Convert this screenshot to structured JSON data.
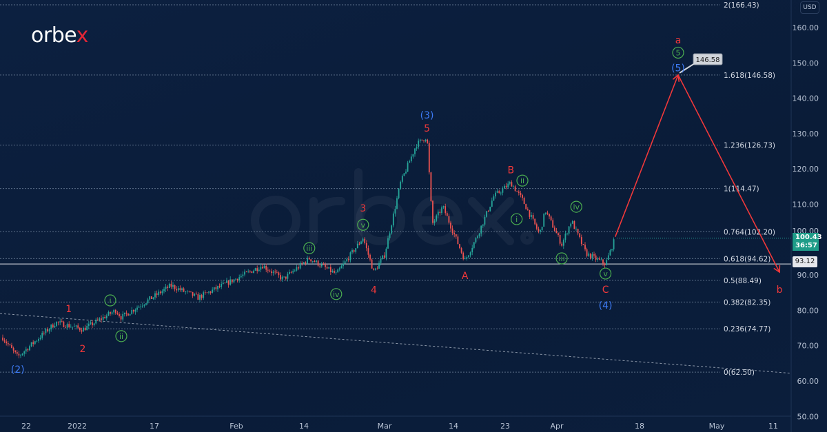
{
  "brand": {
    "logo_text": "orbe",
    "logo_accent": "x",
    "watermark": "orbex.com"
  },
  "colors": {
    "up": "#26a69a",
    "down": "#ef5350",
    "wave_red": "#f0383a",
    "wave_green": "#4caf50",
    "wave_blue": "#3d7bf5",
    "forecast": "#f0383a",
    "background": "#0b1e3c"
  },
  "price_axis": {
    "currency": "USD",
    "current_price": "100.43",
    "countdown": "36:57",
    "line_price": "93.12"
  },
  "chart_data": {
    "type": "candlestick",
    "yaxis": {
      "range": [
        48,
        166.5
      ],
      "ticks": [
        "160.00",
        "150.00",
        "140.00",
        "130.00",
        "120.00",
        "110.00",
        "100.00",
        "90.00",
        "80.00",
        "70.00",
        "60.00",
        "50.00"
      ],
      "tick_values": [
        160,
        150,
        140,
        130,
        120,
        110,
        100,
        90,
        80,
        70,
        60,
        50
      ]
    },
    "xaxis": {
      "ticks": [
        {
          "label": "22",
          "date": "2021-12-22"
        },
        {
          "label": "2022",
          "date": "2022-01-03"
        },
        {
          "label": "17",
          "date": "2022-01-17"
        },
        {
          "label": "Feb",
          "date": "2022-02-01"
        },
        {
          "label": "14",
          "date": "2022-02-14"
        },
        {
          "label": "Mar",
          "date": "2022-03-01"
        },
        {
          "label": "14",
          "date": "2022-03-14"
        },
        {
          "label": "23",
          "date": "2022-03-23"
        },
        {
          "label": "Apr",
          "date": "2022-04-01"
        },
        {
          "label": "18",
          "date": "2022-04-18"
        },
        {
          "label": "May",
          "date": "2022-05-02"
        },
        {
          "label": "11",
          "date": "2022-05-11"
        }
      ]
    },
    "price_path": [
      [
        "2021-12-16",
        72.3
      ],
      [
        "2021-12-20",
        66.8
      ],
      [
        "2021-12-29",
        76.6
      ],
      [
        "2022-01-04",
        74.6
      ],
      [
        "2022-01-10",
        80.0
      ],
      [
        "2022-01-11",
        78.0
      ],
      [
        "2022-01-20",
        87.0
      ],
      [
        "2022-01-25",
        83.6
      ],
      [
        "2022-02-06",
        92.7
      ],
      [
        "2022-02-10",
        88.8
      ],
      [
        "2022-02-15",
        94.7
      ],
      [
        "2022-02-20",
        90.2
      ],
      [
        "2022-02-25",
        100.5
      ],
      [
        "2022-02-27",
        90.8
      ],
      [
        "2022-03-01",
        95.7
      ],
      [
        "2022-03-04",
        116.0
      ],
      [
        "2022-03-07",
        126.9
      ],
      [
        "2022-03-09",
        129.2
      ],
      [
        "2022-03-10",
        104.4
      ],
      [
        "2022-03-12",
        109.3
      ],
      [
        "2022-03-16",
        94.1
      ],
      [
        "2022-03-18",
        100.5
      ],
      [
        "2022-03-21",
        112.2
      ],
      [
        "2022-03-24",
        116.1
      ],
      [
        "2022-03-26",
        111.3
      ],
      [
        "2022-03-29",
        101.5
      ],
      [
        "2022-03-30",
        108.3
      ],
      [
        "2022-04-02",
        98.6
      ],
      [
        "2022-04-04",
        105.4
      ],
      [
        "2022-04-07",
        96.1
      ],
      [
        "2022-04-11",
        93.1
      ],
      [
        "2022-04-13",
        100.43
      ]
    ],
    "fib_levels": [
      {
        "label": "2(166.43)",
        "value": 166.43
      },
      {
        "label": "1.618(146.58)",
        "value": 146.58
      },
      {
        "label": "1.236(126.73)",
        "value": 126.73
      },
      {
        "label": "1(114.47)",
        "value": 114.47
      },
      {
        "label": "0.764(102.20)",
        "value": 102.2
      },
      {
        "label": "0.618(94.62)",
        "value": 94.62
      },
      {
        "label": "0.5(88.49)",
        "value": 88.49
      },
      {
        "label": "0.382(82.35)",
        "value": 82.35
      },
      {
        "label": "0.236(74.77)",
        "value": 74.77
      },
      {
        "label": "0(62.50)",
        "value": 62.5
      }
    ],
    "horizontal_line": 93.12,
    "trendline": [
      [
        "2021-12-16",
        79.1
      ],
      [
        "2022-05-14",
        62.2
      ]
    ],
    "forecast_path": [
      [
        "2022-04-13",
        100.8
      ],
      [
        "2022-04-25",
        146.58
      ],
      [
        "2022-05-12",
        90.8
      ]
    ],
    "forecast_callout": "146.58",
    "wave_labels": [
      {
        "text": "(2)",
        "color": "blue",
        "date": "2021-12-20",
        "price": 63.3,
        "circled": false
      },
      {
        "text": "1",
        "color": "red",
        "date": "2022-01-01",
        "price": 80.5,
        "circled": false
      },
      {
        "text": "2",
        "color": "red",
        "date": "2022-01-04",
        "price": 69.2,
        "circled": false
      },
      {
        "text": "i",
        "color": "green",
        "date": "2022-01-09",
        "price": 82.8,
        "circled": true
      },
      {
        "text": "ii",
        "color": "green",
        "date": "2022-01-11",
        "price": 72.7,
        "circled": true
      },
      {
        "text": "iii",
        "color": "green",
        "date": "2022-02-15",
        "price": 97.6,
        "circled": true
      },
      {
        "text": "iv",
        "color": "green",
        "date": "2022-02-20",
        "price": 84.6,
        "circled": true
      },
      {
        "text": "v",
        "color": "green",
        "date": "2022-02-25",
        "price": 104.2,
        "circled": true
      },
      {
        "text": "3",
        "color": "red",
        "date": "2022-02-25",
        "price": 108.9,
        "circled": false
      },
      {
        "text": "4",
        "color": "red",
        "date": "2022-02-27",
        "price": 85.8,
        "circled": false
      },
      {
        "text": "(3)",
        "color": "blue",
        "date": "2022-03-09",
        "price": 134.7,
        "circled": false
      },
      {
        "text": "5",
        "color": "red",
        "date": "2022-03-09",
        "price": 131.5,
        "circled": false
      },
      {
        "text": "A",
        "color": "red",
        "date": "2022-03-16",
        "price": 89.8,
        "circled": false
      },
      {
        "text": "B",
        "color": "red",
        "date": "2022-03-24",
        "price": 119.7,
        "circled": false
      },
      {
        "text": "ii",
        "color": "green",
        "date": "2022-03-26",
        "price": 116.7,
        "circled": true
      },
      {
        "text": "i",
        "color": "green",
        "date": "2022-03-25",
        "price": 105.8,
        "circled": true
      },
      {
        "text": "iii",
        "color": "green",
        "date": "2022-04-02",
        "price": 94.7,
        "circled": true
      },
      {
        "text": "iv",
        "color": "green",
        "date": "2022-04-05",
        "price": 109.3,
        "circled": true
      },
      {
        "text": "v",
        "color": "green",
        "date": "2022-04-11",
        "price": 90.4,
        "circled": true
      },
      {
        "text": "C",
        "color": "red",
        "date": "2022-04-11",
        "price": 85.9,
        "circled": false
      },
      {
        "text": "(4)",
        "color": "blue",
        "date": "2022-04-11",
        "price": 82.0,
        "circled": false
      },
      {
        "text": "a",
        "color": "red",
        "date": "2022-04-25",
        "price": 156.5,
        "circled": false
      },
      {
        "text": "5",
        "color": "green",
        "date": "2022-04-25",
        "price": 152.9,
        "circled": true
      },
      {
        "text": "(5)",
        "color": "blue",
        "date": "2022-04-25",
        "price": 148.6,
        "circled": false
      },
      {
        "text": "b",
        "color": "red",
        "date": "2022-05-12",
        "price": 85.9,
        "circled": false
      }
    ]
  }
}
